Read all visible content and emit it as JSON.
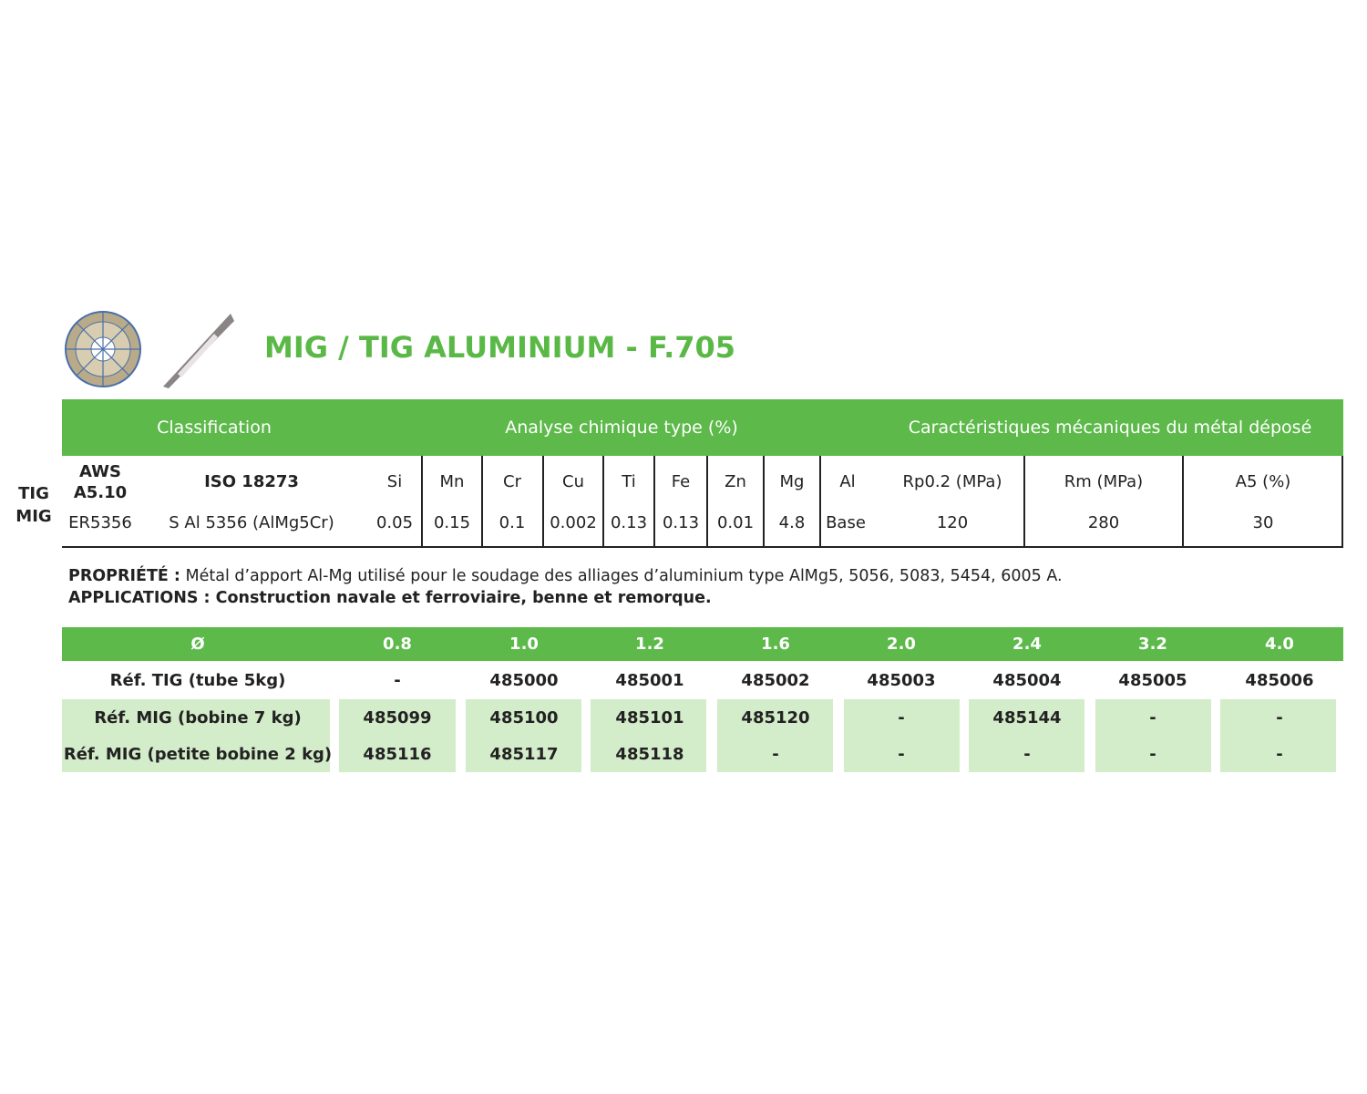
{
  "title": "MIG / TIG ALUMINIUM - F.705",
  "colors": {
    "accent": "#5cb94a",
    "title": "#5ab946",
    "light": "#d3ecc9"
  },
  "icons": [
    "wire-spool-icon",
    "filler-rod-icon"
  ],
  "spec_table": {
    "group_headers": [
      "Classification",
      "Analyse chimique type (%)",
      "Caractéristiques mécaniques du métal déposé"
    ],
    "process": [
      "TIG",
      "MIG"
    ],
    "columns": [
      "AWS A5.10",
      "ISO 18273",
      "Si",
      "Mn",
      "Cr",
      "Cu",
      "Ti",
      "Fe",
      "Zn",
      "Mg",
      "Al",
      "Rp0.2 (MPa)",
      "Rm (MPa)",
      "A5 (%)"
    ],
    "aws_line1": "AWS",
    "aws_line2": "A5.10",
    "values": [
      "ER5356",
      "S Al 5356 (AlMg5Cr)",
      "0.05",
      "0.15",
      "0.1",
      "0.002",
      "0.13",
      "0.13",
      "0.01",
      "4.8",
      "Base",
      "120",
      "280",
      "30"
    ]
  },
  "notes": {
    "property_label": "PROPRIÉTÉ :",
    "property_text": " Métal d’apport Al-Mg utilisé pour le soudage des alliages d’aluminium type AlMg5, 5056, 5083, 5454, 6005 A.",
    "applications_label": "APPLICATIONS :",
    "applications_text": " Construction navale et ferroviaire, benne et remorque."
  },
  "ref_table": {
    "header": [
      "Ø",
      "0.8",
      "1.0",
      "1.2",
      "1.6",
      "2.0",
      "2.4",
      "3.2",
      "4.0"
    ],
    "rows": [
      [
        "Réf. TIG (tube 5kg)",
        "-",
        "485000",
        "485001",
        "485002",
        "485003",
        "485004",
        "485005",
        "485006"
      ],
      [
        "Réf. MIG (bobine 7 kg)",
        "485099",
        "485100",
        "485101",
        "485120",
        "-",
        "485144",
        "-",
        "-"
      ],
      [
        "Réf. MIG (petite bobine 2 kg)",
        "485116",
        "485117",
        "485118",
        "-",
        "-",
        "-",
        "-",
        "-"
      ]
    ]
  }
}
